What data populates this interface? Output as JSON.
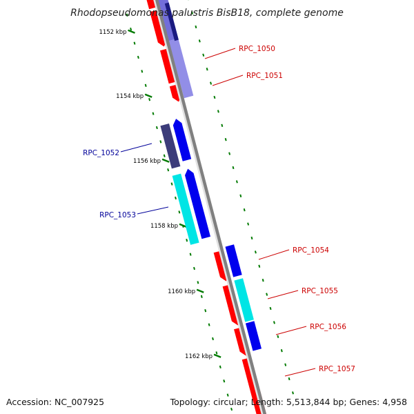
{
  "title": "Rhodopseudomonas palustris BisB18, complete genome",
  "footer": {
    "accession": "Accession: NC_007925",
    "summary": "Topology: circular; Length: 5,513,844 bp; Genes: 4,958"
  },
  "colors": {
    "backbone": "#808080",
    "tick": "#007a00",
    "forward_gene": "#ff0000",
    "reverse_gene": "#0000ee",
    "cyan_feature": "#00e5e5",
    "dark_feature": "#3c3c7a",
    "forward_label": "#cc0000",
    "reverse_label": "#000099"
  },
  "ticks": [
    {
      "label": "1152 kbp"
    },
    {
      "label": "1154 kbp"
    },
    {
      "label": "1156 kbp"
    },
    {
      "label": "1158 kbp"
    },
    {
      "label": "1160 kbp"
    },
    {
      "label": "1162 kbp"
    }
  ],
  "genes": [
    {
      "label": "RPC_1050",
      "strand": "forward"
    },
    {
      "label": "RPC_1051",
      "strand": "forward"
    },
    {
      "label": "RPC_1052",
      "strand": "reverse"
    },
    {
      "label": "RPC_1053",
      "strand": "reverse"
    },
    {
      "label": "RPC_1054",
      "strand": "forward"
    },
    {
      "label": "RPC_1055",
      "strand": "forward"
    },
    {
      "label": "RPC_1056",
      "strand": "forward"
    },
    {
      "label": "RPC_1057",
      "strand": "forward"
    }
  ]
}
